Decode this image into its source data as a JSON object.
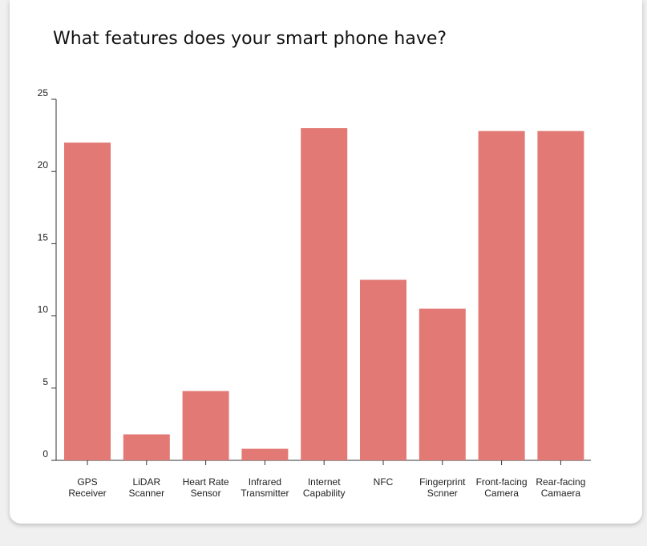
{
  "chart_data": {
    "type": "bar",
    "title": "What features does your smart phone have?",
    "xlabel": "",
    "ylabel": "",
    "ylim": [
      0,
      25
    ],
    "y_ticks": [
      0,
      5,
      10,
      15,
      20,
      25
    ],
    "grid": false,
    "categories": [
      [
        "GPS",
        "Receiver"
      ],
      [
        "LiDAR",
        "Scanner"
      ],
      [
        "Heart Rate",
        "Sensor"
      ],
      [
        "Infrared",
        "Transmitter"
      ],
      [
        "Internet",
        "Capability"
      ],
      [
        "NFC"
      ],
      [
        "Fingerprint",
        "Scnner"
      ],
      [
        "Front-facing",
        "Camera"
      ],
      [
        "Rear-facing",
        "Camaera"
      ]
    ],
    "values": [
      22,
      1.8,
      4.8,
      0.8,
      23,
      12.5,
      10.5,
      22.8,
      22.8
    ],
    "bar_color": "#e27974"
  }
}
